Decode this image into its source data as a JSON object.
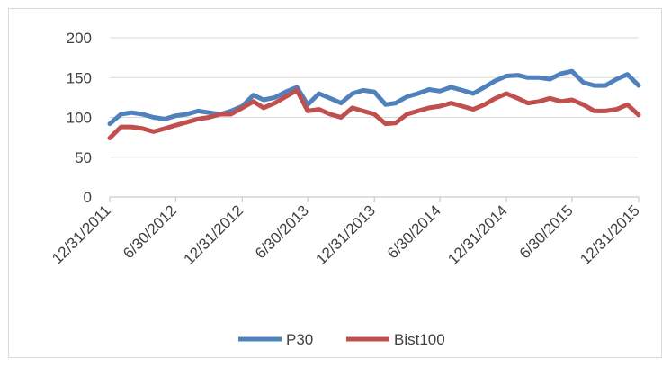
{
  "chart_data": {
    "type": "line",
    "title": "",
    "xlabel": "",
    "ylabel": "",
    "ylim": [
      0,
      200
    ],
    "y_ticks": [
      "0",
      "50",
      "100",
      "150",
      "200"
    ],
    "y_tick_values": [
      0,
      50,
      100,
      150,
      200
    ],
    "x_tick_labels": [
      "12/31/2011",
      "6/30/2012",
      "12/31/2012",
      "6/30/2013",
      "12/31/2013",
      "6/30/2014",
      "12/31/2014",
      "6/30/2015",
      "12/31/2015"
    ],
    "x_tick_dates": [
      "2011-12-31",
      "2012-06-30",
      "2012-12-31",
      "2013-06-30",
      "2013-12-31",
      "2014-06-30",
      "2014-12-31",
      "2015-06-30",
      "2015-12-31"
    ],
    "grid": "horizontal",
    "legend": {
      "position": "bottom"
    },
    "colors": {
      "P30": "#4f81bd",
      "Bist100": "#c0504d",
      "grid": "#d9d9d9",
      "axis": "#bfbfbf"
    },
    "x": [
      "2011-12-31",
      "2012-01-31",
      "2012-02-29",
      "2012-03-31",
      "2012-04-30",
      "2012-05-31",
      "2012-06-30",
      "2012-07-31",
      "2012-08-31",
      "2012-09-30",
      "2012-10-31",
      "2012-11-30",
      "2012-12-31",
      "2013-01-31",
      "2013-02-28",
      "2013-03-31",
      "2013-04-30",
      "2013-05-31",
      "2013-06-30",
      "2013-07-31",
      "2013-08-31",
      "2013-09-30",
      "2013-10-31",
      "2013-11-30",
      "2013-12-31",
      "2014-01-31",
      "2014-02-28",
      "2014-03-31",
      "2014-04-30",
      "2014-05-31",
      "2014-06-30",
      "2014-07-31",
      "2014-08-31",
      "2014-09-30",
      "2014-10-31",
      "2014-11-30",
      "2014-12-31",
      "2015-01-31",
      "2015-02-28",
      "2015-03-31",
      "2015-04-30",
      "2015-05-31",
      "2015-06-30",
      "2015-07-31",
      "2015-08-31",
      "2015-09-30",
      "2015-10-31",
      "2015-11-30",
      "2015-12-31"
    ],
    "series": [
      {
        "name": "P30",
        "values": [
          92,
          104,
          106,
          104,
          100,
          98,
          102,
          104,
          108,
          106,
          104,
          108,
          114,
          128,
          122,
          125,
          132,
          138,
          116,
          130,
          124,
          118,
          130,
          134,
          132,
          116,
          118,
          126,
          130,
          135,
          133,
          138,
          134,
          130,
          138,
          146,
          152,
          153,
          150,
          150,
          148,
          155,
          158,
          144,
          140,
          140,
          148,
          154,
          140
        ]
      },
      {
        "name": "Bist100",
        "values": [
          74,
          88,
          88,
          86,
          82,
          86,
          90,
          94,
          98,
          100,
          104,
          104,
          112,
          120,
          112,
          118,
          126,
          134,
          108,
          110,
          104,
          100,
          112,
          108,
          104,
          92,
          93,
          104,
          108,
          112,
          114,
          118,
          114,
          110,
          116,
          124,
          130,
          124,
          118,
          120,
          124,
          120,
          122,
          116,
          108,
          108,
          110,
          116,
          103
        ]
      }
    ]
  }
}
